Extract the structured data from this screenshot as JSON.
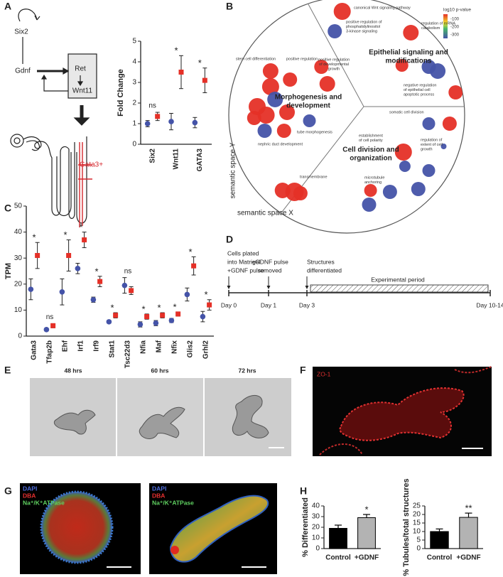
{
  "panels": [
    "A",
    "B",
    "C",
    "D",
    "E",
    "F",
    "G",
    "H"
  ],
  "diagram_a": {
    "nodes": [
      "Six2",
      "Gdnf",
      "Ret",
      "Wnt11"
    ],
    "marker": "Gata3+"
  },
  "timeline_d": {
    "steps": [
      [
        "Cells plated",
        "into Matrigel",
        "+GDNF pulse"
      ],
      [
        "+GDNF pulse",
        "removed"
      ],
      [
        "Structures",
        "differentiated"
      ]
    ],
    "days": [
      "Day 0",
      "Day 1",
      "Day 3",
      "Day 10-14"
    ],
    "period": "Experimental period"
  },
  "images": {
    "e": [
      "48 hrs",
      "60 hrs",
      "72 hrs"
    ],
    "f": "ZO-1",
    "g": [
      "DAPI",
      "DBA",
      "Na⁺/K⁺ATPase"
    ]
  },
  "chart_data": [
    {
      "type": "dot",
      "y_label": "Fold Change",
      "categories": [
        "Six2",
        "Wnt11",
        "GATA3"
      ],
      "series": [
        {
          "color": "#4453a8",
          "marker": "circle",
          "values": [
            1.0,
            1.1,
            1.05
          ],
          "errors": [
            0.15,
            0.4,
            0.25
          ]
        },
        {
          "color": "#e53027",
          "marker": "square",
          "values": [
            1.35,
            3.5,
            3.1
          ],
          "errors": [
            0.2,
            0.8,
            0.6
          ]
        }
      ],
      "annotations": [
        "ns",
        "*",
        "*"
      ],
      "ylim": [
        0,
        5
      ],
      "yticks": [
        0,
        1,
        2,
        3,
        4,
        5
      ]
    },
    {
      "type": "bubble",
      "x_label": "semantic space X",
      "y_label": "semantic space Y",
      "xlim": [
        -8,
        8
      ],
      "ylim": [
        -8,
        8
      ],
      "legend_title": "log10 p-value",
      "colorbar_ticks": [
        -100,
        -200,
        -300
      ],
      "x": [
        -0.3,
        -0.8,
        4.3,
        3.7,
        5.5,
        6.1,
        7.3,
        -5.1,
        -3.8,
        -5.1,
        -1.7,
        -1.3,
        -4.8,
        -6.0,
        -5.4,
        -4.0,
        -2.5,
        -4.2,
        -5.5,
        -6.2,
        6.9,
        5.5,
        3.8,
        6.5,
        3.9,
        5.5,
        -3.5,
        -4.3,
        -3.1,
        1.6,
        1.5,
        2.9,
        4.8
      ],
      "y": [
        7.3,
        5.9,
        5.8,
        3.5,
        3.4,
        3.1,
        1.6,
        3.1,
        2.5,
        2.0,
        3.4,
        2.2,
        1.1,
        0.6,
        0,
        0.2,
        -0.4,
        -1.1,
        -1.1,
        -0.2,
        -0.6,
        -0.6,
        -2.6,
        -2.2,
        -3.6,
        -3.9,
        -5.4,
        -5.3,
        -5.5,
        -5.3,
        -6.3,
        -5.4,
        -5.2
      ],
      "size": [
        12,
        10,
        11,
        9,
        10,
        11,
        10,
        11,
        10,
        12,
        10,
        11,
        11,
        12,
        12,
        11,
        9,
        10,
        10,
        10,
        10,
        9,
        12,
        4,
        8,
        9,
        13,
        11,
        10,
        9,
        10,
        10,
        10
      ],
      "colors": [
        "#e53027",
        "#4453a8",
        "#e53027",
        "#e53027",
        "#4453a8",
        "#4453a8",
        "#e53027",
        "#e53027",
        "#e53027",
        "#e53027",
        "#e53027",
        "#e53027",
        "#4453a8",
        "#e53027",
        "#e53027",
        "#e53027",
        "#4453a8",
        "#e53027",
        "#4453a8",
        "#e53027",
        "#e53027",
        "#4453a8",
        "#e53027",
        "#4453a8",
        "#4453a8",
        "#4453a8",
        "#e53027",
        "#e53027",
        "#e53027",
        "#e53027",
        "#4453a8",
        "#4453a8",
        "#4453a8"
      ],
      "terms": [
        [
          "canonical Wnt signaling pathway"
        ],
        [
          "positive regulation of",
          "phosphatidylinositol",
          "3-kinase signaling"
        ],
        [
          "regulation of mRNA",
          "catabolism"
        ],
        [
          "stem cell differentiation"
        ],
        [
          "positive regulation"
        ],
        [
          "positive regulation",
          "of developmental",
          "growth"
        ],
        [
          "negative regulation",
          "of epithelial cell",
          "apoptotic process"
        ],
        [
          "somatic cell division"
        ],
        [
          "tube morphogenesis"
        ],
        [
          "nephric duct development"
        ],
        [
          "establishment",
          "of cell polarity"
        ],
        [
          "regulation of",
          "extent of cell",
          "growth"
        ],
        [
          "transmembrane"
        ],
        [
          "microtubule",
          "anchoring"
        ]
      ],
      "groups": [
        [
          "Epithelial signaling and",
          "modifications"
        ],
        [
          "Morphogenesis and",
          "development"
        ],
        [
          "Cell division and",
          "organization"
        ]
      ]
    },
    {
      "type": "dot",
      "y_label": "TPM",
      "categories": [
        "Gata3",
        "Tfap2b",
        "Ehf",
        "Irf1",
        "Irf9",
        "Stat1",
        "Tsc22d3",
        "Nfia",
        "Maf",
        "Nfix",
        "Glis2",
        "Grhl2"
      ],
      "series": [
        {
          "color": "#4453a8",
          "marker": "circle",
          "values": [
            18,
            2.5,
            17,
            26,
            14,
            5.5,
            19.5,
            4.5,
            5,
            6,
            16,
            7.5
          ],
          "errors": [
            4,
            0.5,
            5,
            2,
            1,
            0.5,
            3,
            1,
            1,
            0.8,
            2.5,
            2
          ]
        },
        {
          "color": "#e53027",
          "marker": "square",
          "values": [
            31,
            4,
            31,
            37,
            21,
            8,
            17.5,
            7.5,
            8,
            8.5,
            27,
            12
          ],
          "errors": [
            5,
            0.8,
            6,
            3,
            2,
            1,
            1.5,
            1,
            1,
            0.8,
            3.5,
            2
          ]
        }
      ],
      "annotations": [
        "*",
        "ns",
        "*",
        "*",
        "*",
        "*",
        "ns",
        "*",
        "*",
        "*",
        "*",
        "*"
      ],
      "ylim": [
        0,
        50
      ],
      "yticks": [
        0,
        10,
        20,
        30,
        40,
        50
      ]
    },
    {
      "type": "bar",
      "y_label": "% Differentiated",
      "categories": [
        "Control",
        "+GDNF"
      ],
      "values": [
        19,
        29
      ],
      "errors": [
        3,
        3
      ],
      "colors": [
        "#000000",
        "#b3b3b3"
      ],
      "annotations": [
        null,
        "*"
      ],
      "ylim": [
        0,
        40
      ],
      "yticks": [
        0,
        10,
        20,
        30,
        40
      ]
    },
    {
      "type": "bar",
      "y_label": "% Tubules/total structures",
      "categories": [
        "Control",
        "+GDNF"
      ],
      "values": [
        10,
        18.3
      ],
      "errors": [
        1.5,
        2.5
      ],
      "colors": [
        "#000000",
        "#b3b3b3"
      ],
      "annotations": [
        null,
        "**"
      ],
      "ylim": [
        0,
        25
      ],
      "yticks": [
        0,
        5,
        10,
        15,
        20,
        25
      ]
    }
  ]
}
